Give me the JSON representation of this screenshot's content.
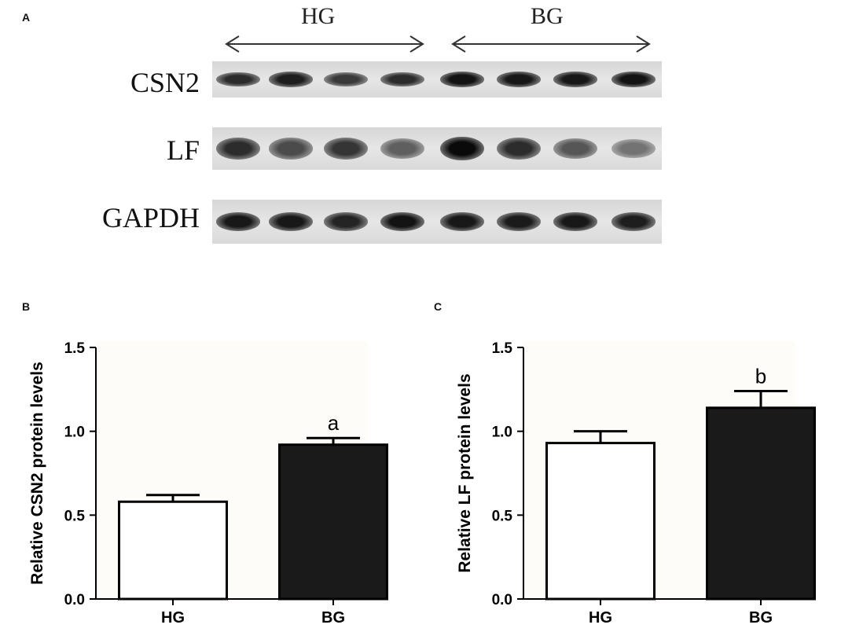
{
  "panels": {
    "a": "A",
    "b": "B",
    "c": "C"
  },
  "blot": {
    "groups": [
      {
        "name": "HG",
        "lanes": 4
      },
      {
        "name": "BG",
        "lanes": 4
      }
    ],
    "rows": [
      {
        "label": "CSN2",
        "intensity": [
          0.8,
          0.88,
          0.72,
          0.8,
          0.95,
          0.92,
          0.92,
          0.95
        ]
      },
      {
        "label": "LF",
        "intensity": [
          0.8,
          0.62,
          0.75,
          0.5,
          1.0,
          0.8,
          0.55,
          0.38
        ]
      },
      {
        "label": "GAPDH",
        "intensity": [
          0.92,
          0.92,
          0.85,
          0.95,
          0.92,
          0.9,
          0.92,
          0.88
        ]
      }
    ]
  },
  "chart_data": [
    {
      "type": "bar",
      "categories": [
        "HG",
        "BG"
      ],
      "values": [
        0.58,
        0.92
      ],
      "errors": [
        0.04,
        0.04
      ],
      "fills": [
        "#ffffff",
        "#1a1a1a"
      ],
      "annotations": [
        "",
        "a"
      ],
      "ylabel": "Relative CSN2 protein levels",
      "ylim": [
        0,
        1.5
      ],
      "yticks": [
        "0.0",
        "0.5",
        "1.0",
        "1.5"
      ]
    },
    {
      "type": "bar",
      "categories": [
        "HG",
        "BG"
      ],
      "values": [
        0.93,
        1.14
      ],
      "errors": [
        0.07,
        0.1
      ],
      "fills": [
        "#ffffff",
        "#1a1a1a"
      ],
      "annotations": [
        "",
        "b"
      ],
      "ylabel": "Relative LF protein levels",
      "ylim": [
        0,
        1.5
      ],
      "yticks": [
        "0.0",
        "0.5",
        "1.0",
        "1.5"
      ]
    }
  ]
}
